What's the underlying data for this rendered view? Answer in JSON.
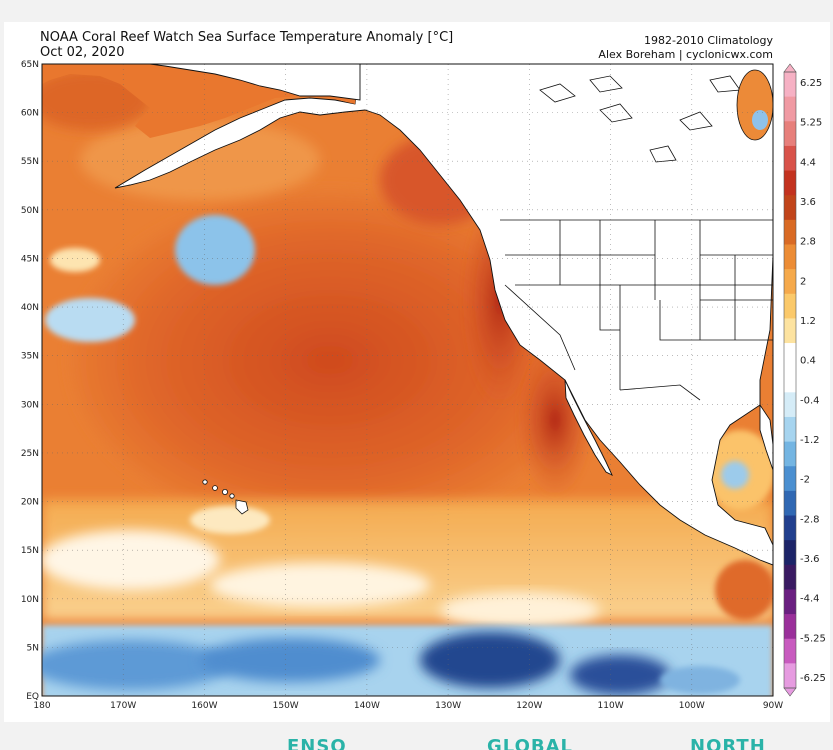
{
  "title": "NOAA Coral Reef Watch Sea Surface Temperature Anomaly [°C]",
  "date": "Oct 02, 2020",
  "climatology": "1982-2010 Climatology",
  "credit": "Alex Boreham | cyclonicwx.com",
  "map": {
    "lat_labels": [
      "65N",
      "60N",
      "55N",
      "50N",
      "45N",
      "40N",
      "35N",
      "30N",
      "25N",
      "20N",
      "15N",
      "10N",
      "5N",
      "EQ"
    ],
    "lon_labels": [
      "180",
      "170W",
      "160W",
      "150W",
      "140W",
      "130W",
      "120W",
      "110W",
      "100W",
      "90W"
    ],
    "lat_range": [
      0,
      65
    ],
    "lon_range": [
      -180,
      -90
    ]
  },
  "colorbar": {
    "labels": [
      "6.25",
      "5.25",
      "4.4",
      "3.6",
      "2.8",
      "2",
      "1.2",
      "0.4",
      "-0.4",
      "-1.2",
      "-2",
      "-2.8",
      "-3.6",
      "-4.4",
      "-5.25",
      "-6.25"
    ],
    "colors": [
      "#f6b1c4",
      "#f09aa3",
      "#e77f7b",
      "#d8524a",
      "#c3321f",
      "#c1441a",
      "#d96a24",
      "#ec8c35",
      "#f5a94b",
      "#fbc96a",
      "#fde3a0",
      "#ffffff",
      "#ffffff",
      "#d5ecf7",
      "#a6d4ef",
      "#74b5e2",
      "#4b8fd0",
      "#3068b3",
      "#213f8e",
      "#1c2468",
      "#3a1a62",
      "#6a1f80",
      "#9a2f9a",
      "#c85bbf",
      "#e69be0"
    ]
  },
  "tabs": [
    "ENSO",
    "GLOBAL",
    "NORTH"
  ]
}
